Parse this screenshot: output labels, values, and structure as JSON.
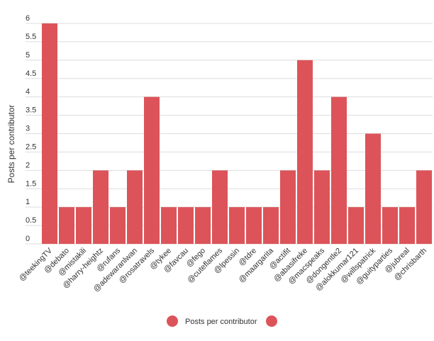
{
  "chart_data": {
    "type": "bar",
    "title": "",
    "xlabel": "",
    "ylabel": "Posts per contributor",
    "ylim": [
      0,
      6
    ],
    "y_ticks": [
      "0",
      "0.5",
      "1",
      "1.5",
      "2",
      "2.5",
      "3",
      "3.5",
      "4",
      "4.5",
      "5",
      "5.5",
      "6"
    ],
    "grid": true,
    "legend_position": "bottom",
    "color": "#dc5459",
    "categories": [
      "@teekingTV",
      "@debato",
      "@mistakili",
      "@harry-heightz",
      "@rufans",
      "@adewaranlwan",
      "@rosatravels",
      "@tykee",
      "@favcau",
      "@fego",
      "@cuteflames",
      "@lpessin",
      "@tdre",
      "@maargarita",
      "@actifit",
      "@abasifreke",
      "@macspeaks",
      "@dongentle2",
      "@alokkumar121",
      "@willspatrick",
      "@guityparties",
      "@jubreal",
      "@chrisbarth"
    ],
    "series": [
      {
        "name": "Posts per contributor",
        "values": [
          6,
          1,
          1,
          2,
          1,
          2,
          4,
          1,
          1,
          1,
          2,
          1,
          1,
          1,
          2,
          5,
          2,
          4,
          1,
          3,
          1,
          1,
          2
        ]
      }
    ],
    "legend": [
      "Posts per contributor"
    ]
  }
}
